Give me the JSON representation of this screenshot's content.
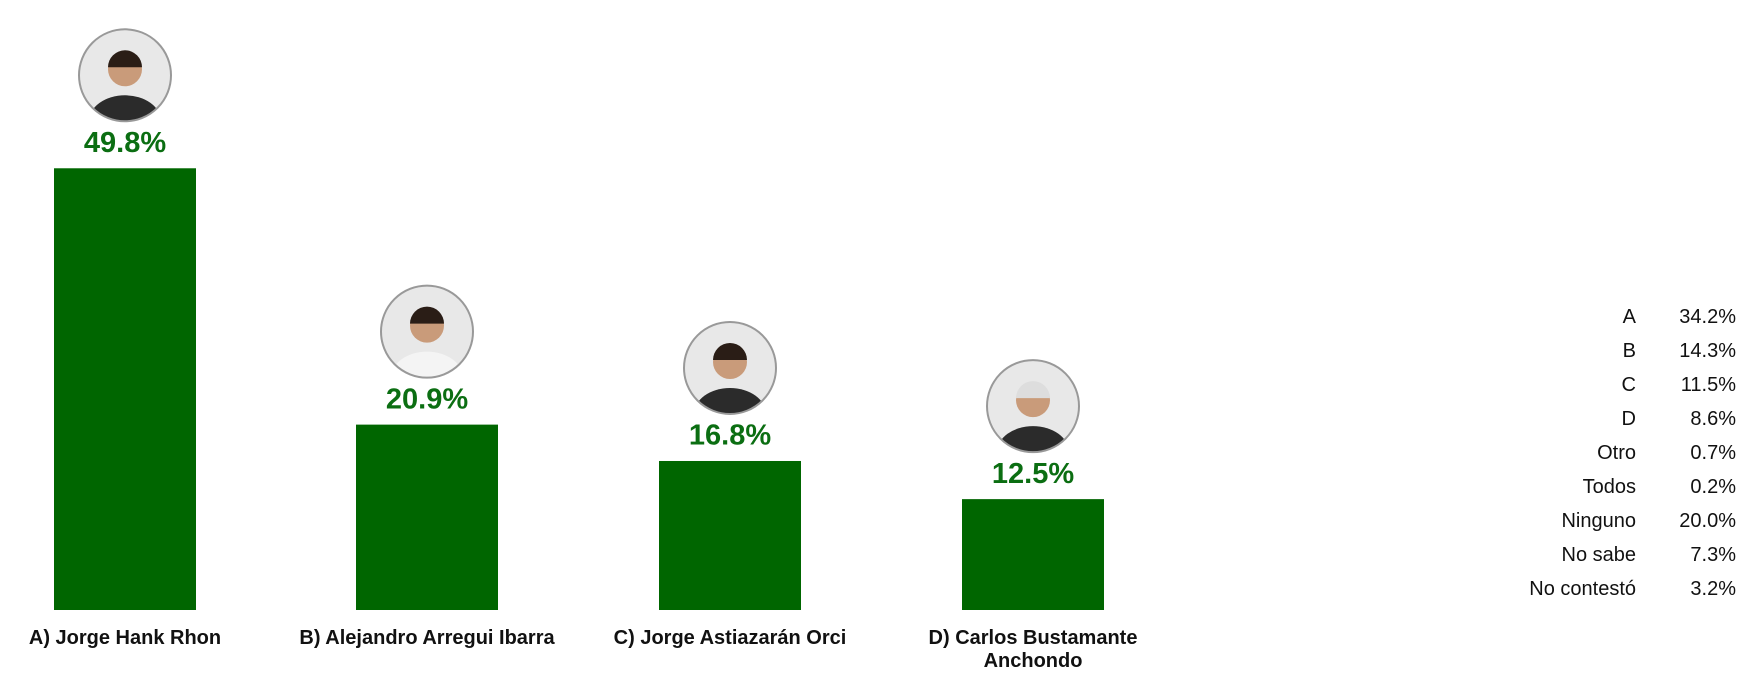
{
  "chart_data": {
    "type": "bar",
    "categories": [
      "A) Jorge Hank Rhon",
      "B) Alejandro Arregui Ibarra",
      "C) Jorge Astiazarán Orci",
      "D) Carlos Bustamante Anchondo"
    ],
    "values": [
      49.8,
      20.9,
      16.8,
      12.5
    ],
    "value_labels": [
      "49.8%",
      "20.9%",
      "16.8%",
      "12.5%"
    ],
    "color": "#006600",
    "label_color": "#0b6e12"
  },
  "table": {
    "rows": [
      [
        "A",
        "34.2%"
      ],
      [
        "B",
        "14.3%"
      ],
      [
        "C",
        "11.5%"
      ],
      [
        "D",
        "8.6%"
      ],
      [
        "Otro",
        "0.7%"
      ],
      [
        "Todos",
        "0.2%"
      ],
      [
        "Ninguno",
        "20.0%"
      ],
      [
        "No sabe",
        "7.3%"
      ],
      [
        "No contestó",
        "3.2%"
      ]
    ]
  }
}
